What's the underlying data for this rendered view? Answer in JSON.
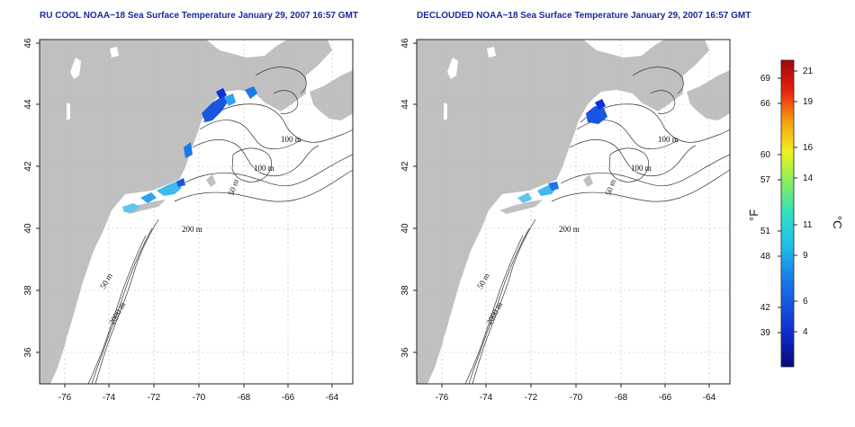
{
  "panels": [
    {
      "title": "RU COOL NOAA−18 Sea Surface Temperature January 29, 2007 16:57 GMT",
      "y_ticks": [
        "46",
        "44",
        "42",
        "40",
        "38",
        "36"
      ],
      "x_ticks": [
        "-76",
        "-74",
        "-72",
        "-70",
        "-68",
        "-66",
        "-64"
      ],
      "contour_labels": [
        "100 m",
        "100 m",
        "50 m",
        "200 m",
        "50 m",
        "2000 m"
      ]
    },
    {
      "title": "DECLOUDED NOAA−18 Sea Surface Temperature January 29, 2007 16:57 GMT",
      "y_ticks": [
        "46",
        "44",
        "42",
        "40",
        "38",
        "36"
      ],
      "x_ticks": [
        "-76",
        "-74",
        "-72",
        "-70",
        "-68",
        "-66",
        "-64"
      ],
      "contour_labels": [
        "100 m",
        "100 m",
        "50 m",
        "200 m",
        "50 m",
        "2000 m"
      ]
    }
  ],
  "colorbar": {
    "fahrenheit_ticks": [
      "69",
      "66",
      "60",
      "57",
      "51",
      "48",
      "42",
      "39"
    ],
    "celsius_ticks": [
      "21",
      "19",
      "16",
      "14",
      "11",
      "9",
      "6",
      "4"
    ],
    "unit_f": "°F",
    "unit_c": "°C",
    "colors": [
      "#08087a",
      "#1030d0",
      "#1a78e8",
      "#20c0e8",
      "#30e0c0",
      "#80f060",
      "#f0f020",
      "#f8a010",
      "#e82010",
      "#a00808"
    ]
  },
  "colors": {
    "land": "#c0c0c0",
    "ocean": "#ffffff",
    "title": "#1a2a9a",
    "sst_cold": "#1030d0",
    "sst_mid": "#30a0f0"
  }
}
